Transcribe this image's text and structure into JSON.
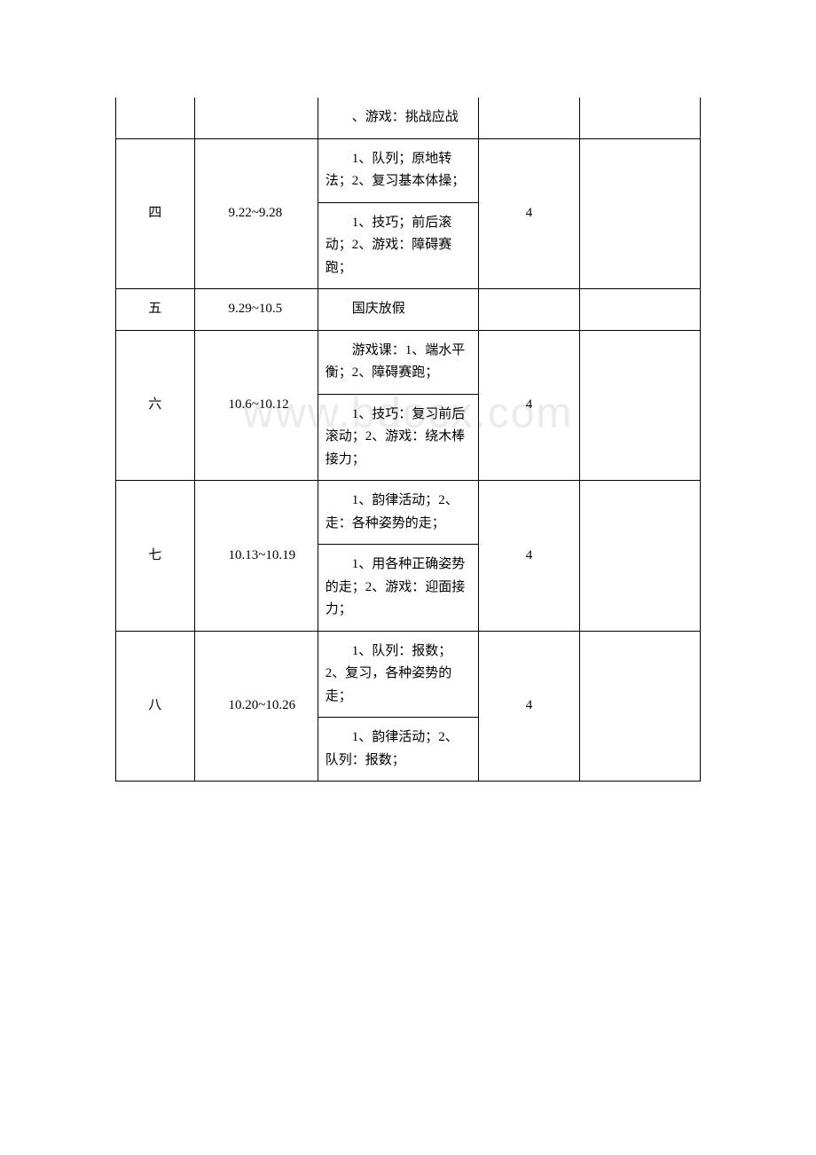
{
  "watermark": "www.bdocx.com",
  "rows": [
    {
      "num": "",
      "date": "",
      "content_a": "、游戏：挑战应战",
      "hours": "",
      "note": ""
    },
    {
      "num": "四",
      "date": "9.22~9.28",
      "content_a": "1、队列；原地转法；2、复习基本体操；",
      "content_b": "1、技巧；前后滚动；2、游戏：障碍赛跑；",
      "hours": "4",
      "note": ""
    },
    {
      "num": "五",
      "date": "9.29~10.5",
      "content_a": "国庆放假",
      "hours": "",
      "note": ""
    },
    {
      "num": "六",
      "date": "10.6~10.12",
      "content_a": "游戏课：1、端水平衡；2、障碍赛跑；",
      "content_b": "1、技巧：复习前后滚动；2、游戏：绕木棒接力；",
      "hours": "4",
      "note": ""
    },
    {
      "num": "七",
      "date": "10.13~10.19",
      "content_a": "1、韵律活动；2、走：各种姿势的走；",
      "content_b": "1、用各种正确姿势的走；2、游戏：迎面接力；",
      "hours": "4",
      "note": ""
    },
    {
      "num": "八",
      "date": "10.20~10.26",
      "content_a": "1、队列：报数；2、复习，各种姿势的走；",
      "content_b": "1、韵律活动；2、队列：报数；",
      "hours": "4",
      "note": ""
    }
  ]
}
